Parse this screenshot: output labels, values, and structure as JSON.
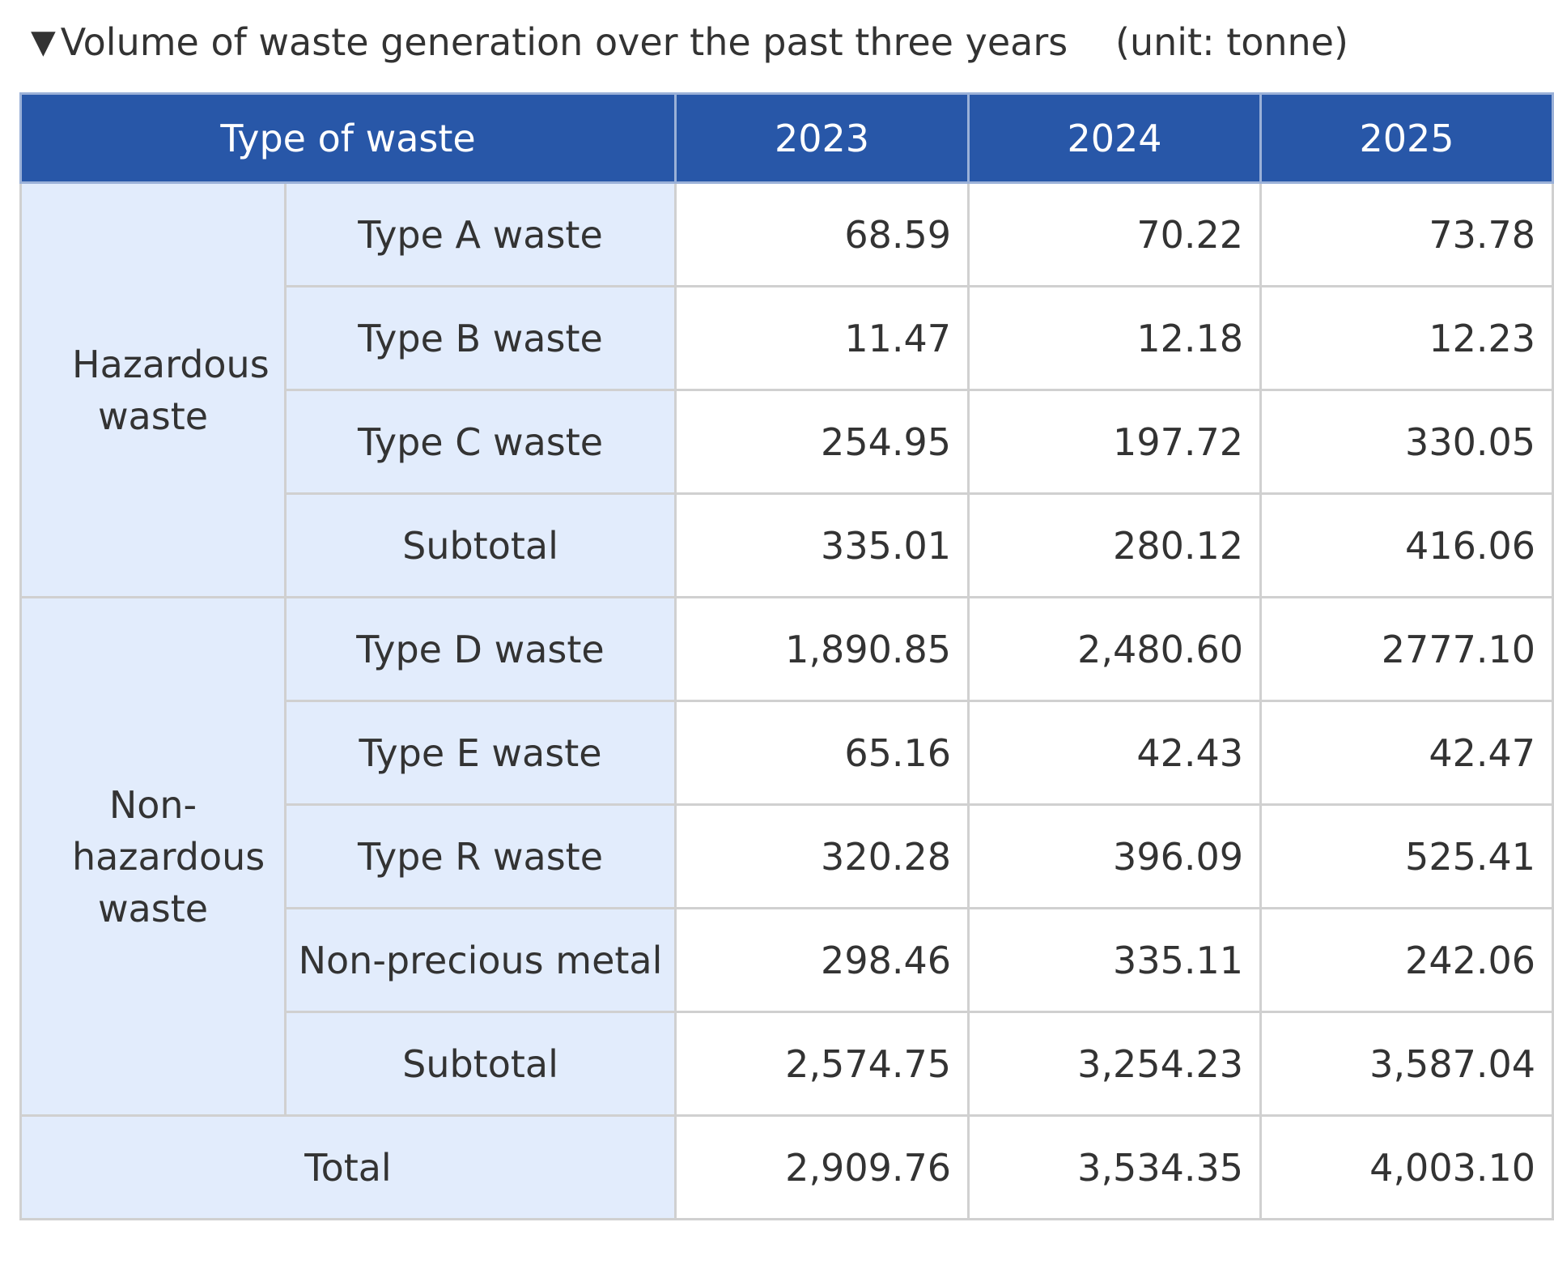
{
  "title": {
    "marker": "▼",
    "text": "Volume of waste generation over the past three years",
    "unit": "(unit: tonne)"
  },
  "table": {
    "header": {
      "type_label": "Type of waste",
      "years": [
        "2023",
        "2024",
        "2025"
      ]
    },
    "groups": [
      {
        "category": "Hazardous waste",
        "rows": [
          {
            "label": "Type A waste",
            "values": [
              "68.59",
              "70.22",
              "73.78"
            ]
          },
          {
            "label": "Type B waste",
            "values": [
              "11.47",
              "12.18",
              "12.23"
            ]
          },
          {
            "label": "Type C waste",
            "values": [
              "254.95",
              "197.72",
              "330.05"
            ]
          },
          {
            "label": "Subtotal",
            "values": [
              "335.01",
              "280.12",
              "416.06"
            ]
          }
        ]
      },
      {
        "category": "Non-hazardous waste",
        "rows": [
          {
            "label": "Type D waste",
            "values": [
              "1,890.85",
              "2,480.60",
              "2777.10"
            ]
          },
          {
            "label": "Type E waste",
            "values": [
              "65.16",
              "42.43",
              "42.47"
            ]
          },
          {
            "label": "Type R waste",
            "values": [
              "320.28",
              "396.09",
              "525.41"
            ]
          },
          {
            "label": "Non-precious metal",
            "values": [
              "298.46",
              "335.11",
              "242.06"
            ]
          },
          {
            "label": "Subtotal",
            "values": [
              "2,574.75",
              "3,254.23",
              "3,587.04"
            ]
          }
        ]
      }
    ],
    "total": {
      "label": "Total",
      "values": [
        "2,909.76",
        "3,534.35",
        "4,003.10"
      ]
    }
  },
  "colors": {
    "header_bg": "#2857a8",
    "label_bg": "#e2ecfc",
    "grid": "#d0d0d0"
  }
}
